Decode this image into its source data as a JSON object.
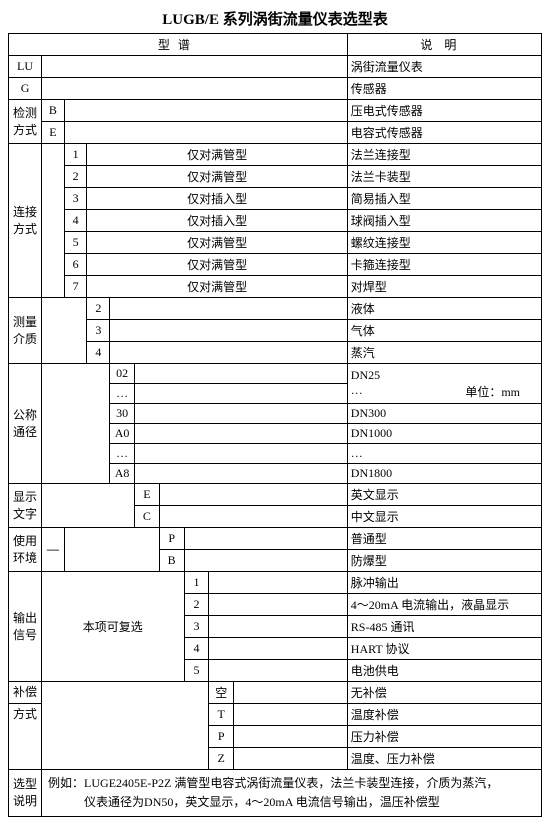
{
  "title": "LUGB/E 系列涡街流量仪表选型表",
  "header": {
    "col1": "型谱",
    "col2": "说明"
  },
  "rows": {
    "lu": {
      "code": "LU",
      "desc": "涡街流量仪表"
    },
    "g": {
      "code": "G",
      "desc": "传感器"
    },
    "detect": {
      "label": "检测\n方式",
      "b": "B",
      "b_desc": "压电式传感器",
      "e": "E",
      "e_desc": "电容式传感器"
    },
    "conn": {
      "label": "连接\n方式",
      "items": [
        {
          "n": "1",
          "t": "仅对满管型",
          "d": "法兰连接型"
        },
        {
          "n": "2",
          "t": "仅对满管型",
          "d": "法兰卡装型"
        },
        {
          "n": "3",
          "t": "仅对插入型",
          "d": "简易插入型"
        },
        {
          "n": "4",
          "t": "仅对插入型",
          "d": "球阀插入型"
        },
        {
          "n": "5",
          "t": "仅对满管型",
          "d": "螺纹连接型"
        },
        {
          "n": "6",
          "t": "仅对满管型",
          "d": "卡箍连接型"
        },
        {
          "n": "7",
          "t": "仅对满管型",
          "d": "对焊型"
        }
      ]
    },
    "medium": {
      "label": "测量\n介质",
      "items": [
        {
          "n": "2",
          "d": "液体"
        },
        {
          "n": "3",
          "d": "气体"
        },
        {
          "n": "4",
          "d": "蒸汽"
        }
      ]
    },
    "dn": {
      "label": "公称\n通径",
      "unit": "单位：mm",
      "items": [
        {
          "n": "02",
          "d": "DN25"
        },
        {
          "n": "…",
          "d": "…"
        },
        {
          "n": "30",
          "d": "DN300"
        },
        {
          "n": "A0",
          "d": "DN1000"
        },
        {
          "n": "…",
          "d": "…"
        },
        {
          "n": "A8",
          "d": "DN1800"
        }
      ]
    },
    "disp": {
      "label": "显示\n文字",
      "e": "E",
      "e_desc": "英文显示",
      "c": "C",
      "c_desc": "中文显示"
    },
    "env": {
      "label": "使用\n环境",
      "dash": "—",
      "p": "P",
      "p_desc": "普通型",
      "b": "B",
      "b_desc": "防爆型"
    },
    "out": {
      "label": "输出\n信号",
      "note": "本项可复选",
      "items": [
        {
          "n": "1",
          "d": "脉冲输出"
        },
        {
          "n": "2",
          "d": "4～20mA 电流输出，液晶显示"
        },
        {
          "n": "3",
          "d": "RS-485 通讯"
        },
        {
          "n": "4",
          "d": "HART 协议"
        },
        {
          "n": "5",
          "d": "电池供电"
        }
      ]
    },
    "comp": {
      "label1": "补偿",
      "label2": "方式",
      "items": [
        {
          "n": "空",
          "d": "无补偿"
        },
        {
          "n": "T",
          "d": "温度补偿"
        },
        {
          "n": "P",
          "d": "压力补偿"
        },
        {
          "n": "Z",
          "d": "温度、压力补偿"
        }
      ]
    },
    "example": {
      "label": "选型\n说明",
      "line1": "例如：LUGE2405E-P2Z 满管型电容式涡街流量仪表，法兰卡装型连接，介质为蒸汽，",
      "line2": "仪表通径为DN50，英文显示，4～20mA 电流信号输出，温压补偿型"
    }
  }
}
